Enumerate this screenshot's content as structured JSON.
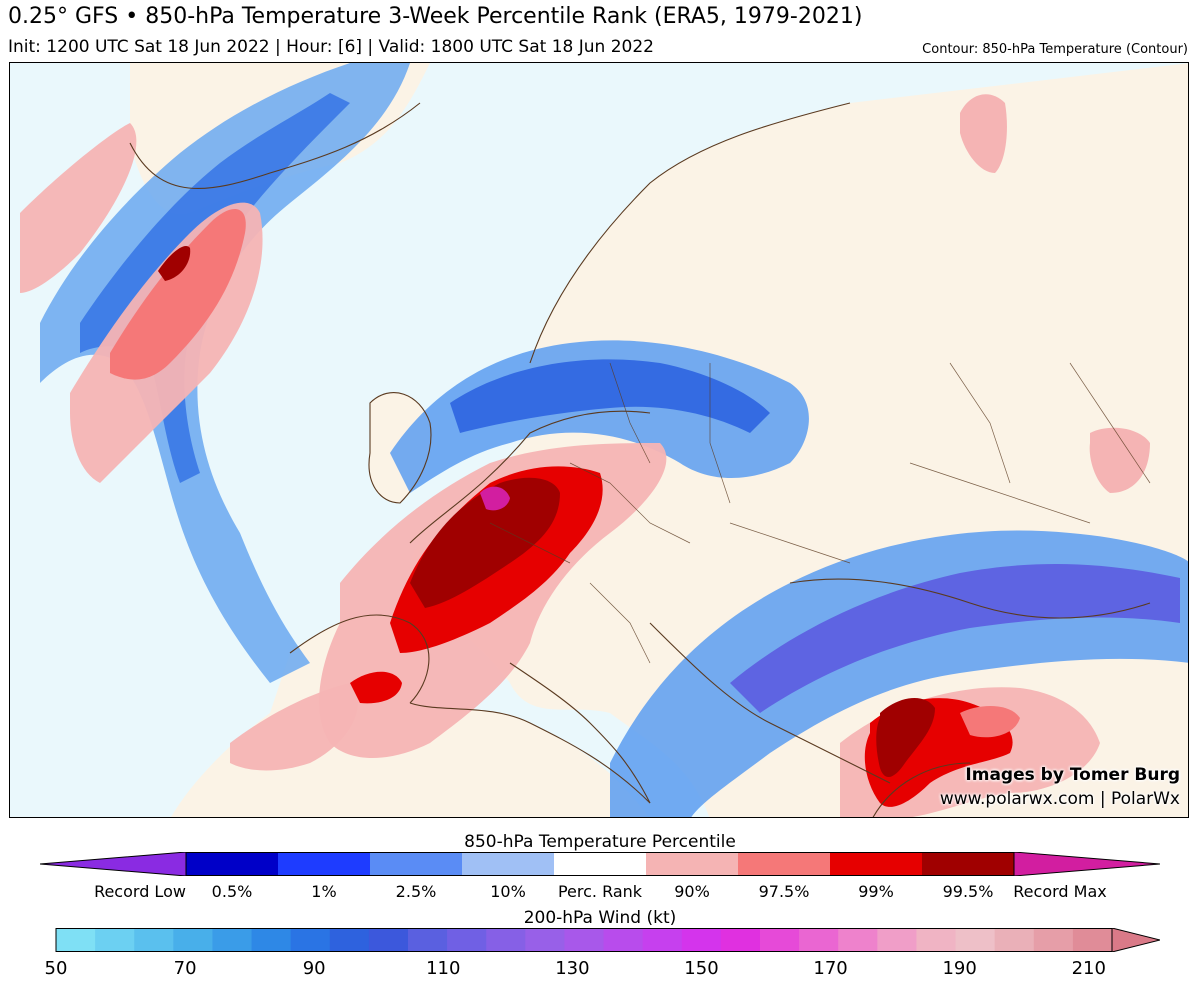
{
  "header": {
    "title": "0.25° GFS • 850-hPa Temperature 3-Week Percentile Rank (ERA5, 1979-2021)",
    "subtitle": "Init: 1200 UTC Sat 18 Jun 2022 | Hour: [6] | Valid: 1800 UTC Sat 18 Jun 2022",
    "contour_note": "Contour: 850-hPa Temperature (Contour)"
  },
  "credits": {
    "line1": "Images by Tomer Burg",
    "line2": "www.polarwx.com | PolarWx"
  },
  "colorbar_percentile": {
    "title": "850-hPa Temperature Percentile",
    "colors": [
      "#8a2be2",
      "#0000c8",
      "#1e3cff",
      "#5a8cf5",
      "#a0c0f5",
      "#ffffff",
      "#f5b4b4",
      "#f57878",
      "#e60000",
      "#a00000",
      "#d21ea0"
    ],
    "labels": [
      "Record Low",
      "0.5%",
      "1%",
      "2.5%",
      "10%",
      "Perc. Rank",
      "90%",
      "97.5%",
      "99%",
      "99.5%",
      "Record Max"
    ]
  },
  "colorbar_wind": {
    "title": "200-hPa Wind (kt)",
    "colors": [
      "#7fe0f5",
      "#6cd0f2",
      "#5ac0ee",
      "#48afea",
      "#3a9ce8",
      "#2e88e6",
      "#2a74e4",
      "#2e62de",
      "#3c58dc",
      "#5a60e0",
      "#7060e4",
      "#8660e6",
      "#9860e8",
      "#a858ea",
      "#b84cec",
      "#c640ee",
      "#d434ec",
      "#e030e0",
      "#e64ad8",
      "#ea66d2",
      "#ee82cc",
      "#f09ec8",
      "#f0b4c4",
      "#eec0c8",
      "#eab0b8",
      "#e69ea8",
      "#e08c98",
      "#da7a88"
    ],
    "labels": [
      "50",
      "70",
      "90",
      "110",
      "130",
      "150",
      "170",
      "190",
      "210"
    ]
  }
}
